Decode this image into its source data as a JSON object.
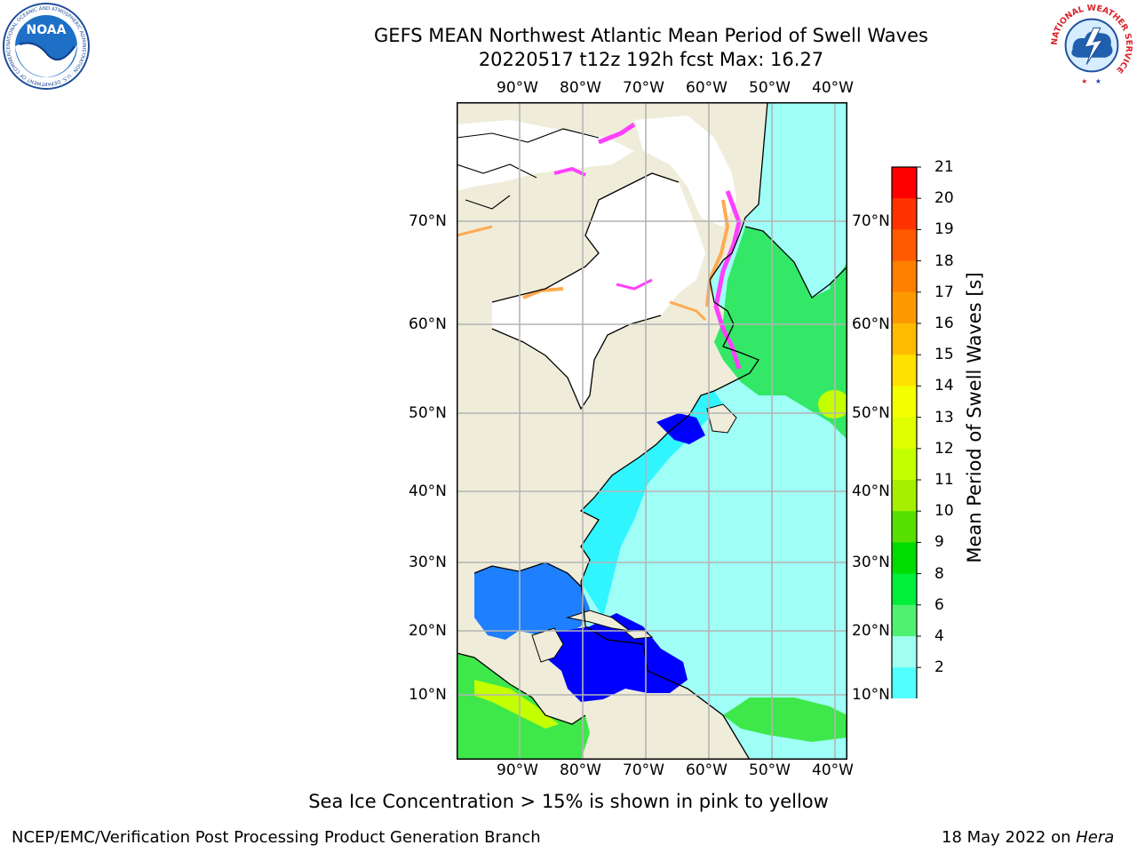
{
  "header": {
    "title_line1": "GEFS MEAN Northwest Atlantic Mean Period of Swell Waves",
    "title_line2": "20220517 t12z 192h fcst   Max: 16.27"
  },
  "map": {
    "lon_labels": [
      "90°W",
      "80°W",
      "70°W",
      "60°W",
      "50°W",
      "40°W"
    ],
    "lat_labels": [
      "70°N",
      "60°N",
      "50°N",
      "40°N",
      "30°N",
      "20°N",
      "10°N"
    ],
    "land_color": "#efedda",
    "ice_color": "#ffffff",
    "grid_color": "#b4b4b4"
  },
  "colorbar": {
    "title": "Mean Period of Swell Waves [s]",
    "ticks": [
      "21",
      "20",
      "19",
      "18",
      "17",
      "16",
      "15",
      "14",
      "13",
      "12",
      "11",
      "10",
      "9",
      "8",
      "6",
      "4",
      "2"
    ],
    "colors": [
      "#ff0000",
      "#ff3300",
      "#ff5a00",
      "#ff7f00",
      "#ff9900",
      "#ffbb00",
      "#ffe000",
      "#f4ff00",
      "#e0ff00",
      "#c4ff00",
      "#a4f000",
      "#58e000",
      "#00dc00",
      "#00f03a",
      "#50f070",
      "#a0fff0",
      "#50ffff",
      "#00f0ff",
      "#0080ff",
      "#0000ff"
    ]
  },
  "note": "Sea Ice Concentration > 15% is shown in pink to yellow",
  "footer": {
    "left": "NCEP/EMC/Verification Post Processing Product Generation Branch",
    "date": "18 May 2022 on ",
    "machine": "Hera"
  },
  "logos": {
    "noaa_text": "NOAA",
    "noaa_ring": "NATIONAL OCEANIC AND ATMOSPHERIC ADMINISTRATION · U.S. DEPARTMENT OF COMMERCE",
    "nws_ring": "NATIONAL WEATHER SERVICE"
  }
}
